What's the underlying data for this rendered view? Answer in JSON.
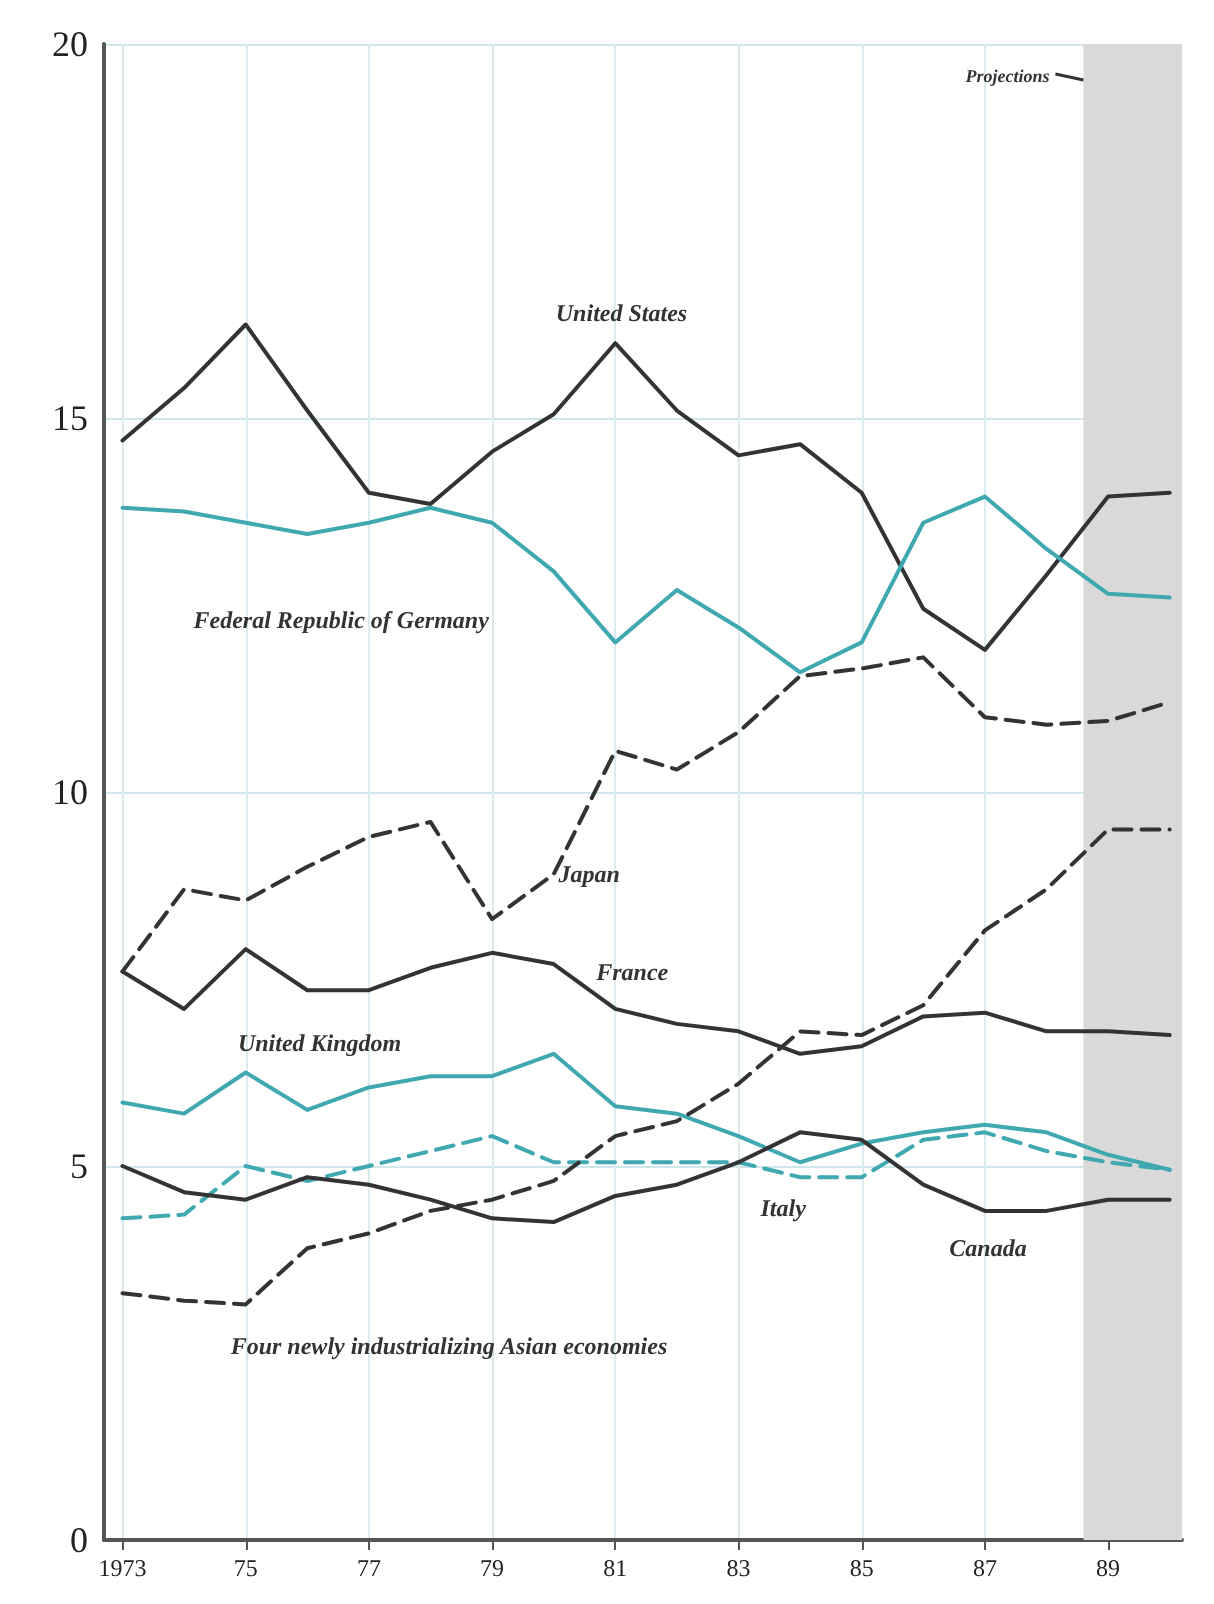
{
  "chart_data": {
    "type": "line",
    "x": [
      1973,
      1974,
      1975,
      1976,
      1977,
      1978,
      1979,
      1980,
      1981,
      1982,
      1983,
      1984,
      1985,
      1986,
      1987,
      1988,
      1989,
      1990
    ],
    "series": [
      {
        "name": "United States",
        "color": "#333333",
        "line_style": "solid",
        "values": [
          14.7,
          15.4,
          16.25,
          15.1,
          14.0,
          13.85,
          14.55,
          15.05,
          16.0,
          15.1,
          14.5,
          14.65,
          14.0,
          12.45,
          11.9,
          12.9,
          13.95,
          14.0
        ]
      },
      {
        "name": "Federal Republic of Germany",
        "color": "#3fa8b0",
        "line_style": "solid",
        "values": [
          13.8,
          13.75,
          13.6,
          13.45,
          13.6,
          13.8,
          13.6,
          12.95,
          12.0,
          12.7,
          12.2,
          11.6,
          12.0,
          13.6,
          13.95,
          13.25,
          12.65,
          12.6
        ]
      },
      {
        "name": "Japan",
        "color": "#333333",
        "line_style": "dashed",
        "values": [
          7.6,
          8.7,
          8.55,
          9.0,
          9.4,
          9.6,
          8.3,
          8.9,
          10.55,
          10.3,
          10.8,
          11.55,
          11.65,
          11.8,
          11.0,
          10.9,
          10.95,
          11.2
        ]
      },
      {
        "name": "France",
        "color": "#333333",
        "line_style": "solid",
        "values": [
          7.6,
          7.1,
          7.9,
          7.35,
          7.35,
          7.65,
          7.85,
          7.7,
          7.1,
          6.9,
          6.8,
          6.5,
          6.6,
          7.0,
          7.05,
          6.8,
          6.8,
          6.75
        ]
      },
      {
        "name": "United Kingdom",
        "color": "#3fa8b0",
        "line_style": "solid",
        "values": [
          5.85,
          5.7,
          6.25,
          5.75,
          6.05,
          6.2,
          6.2,
          6.5,
          5.8,
          5.7,
          5.4,
          5.05,
          5.3,
          5.45,
          5.55,
          5.45,
          5.15,
          4.95
        ]
      },
      {
        "name": "Italy",
        "color": "#3fa8b0",
        "line_style": "dashed",
        "values": [
          4.3,
          4.35,
          5.0,
          4.8,
          5.0,
          5.2,
          5.4,
          5.05,
          5.05,
          5.05,
          5.05,
          4.85,
          4.85,
          5.35,
          5.45,
          5.2,
          5.05,
          4.95
        ]
      },
      {
        "name": "Canada",
        "color": "#333333",
        "line_style": "solid",
        "values": [
          5.0,
          4.65,
          4.55,
          4.85,
          4.75,
          4.55,
          4.3,
          4.25,
          4.6,
          4.75,
          5.05,
          5.45,
          5.35,
          4.75,
          4.4,
          4.4,
          4.55,
          4.55
        ]
      },
      {
        "name": "Four newly industrializing Asian economies",
        "color": "#333333",
        "line_style": "dashed",
        "values": [
          3.3,
          3.2,
          3.15,
          3.9,
          4.1,
          4.4,
          4.55,
          4.8,
          5.4,
          5.6,
          6.1,
          6.8,
          6.75,
          7.15,
          8.15,
          8.7,
          9.5,
          9.5
        ]
      }
    ],
    "bands": [
      {
        "axis": "x",
        "from": 1988.6,
        "to": 1990.2,
        "label": "Projections",
        "color": "#d9d9d9"
      }
    ],
    "xlim": [
      1972.7,
      1990.2
    ],
    "xticks": [
      {
        "value": 1973,
        "label": "1973"
      },
      {
        "value": 1975,
        "label": "75"
      },
      {
        "value": 1977,
        "label": "77"
      },
      {
        "value": 1979,
        "label": "79"
      },
      {
        "value": 1981,
        "label": "81"
      },
      {
        "value": 1983,
        "label": "83"
      },
      {
        "value": 1985,
        "label": "85"
      },
      {
        "value": 1987,
        "label": "87"
      },
      {
        "value": 1989,
        "label": "89"
      }
    ],
    "ylim": [
      0,
      20
    ],
    "yticks": [
      0,
      5,
      10,
      15,
      20
    ],
    "grid": true,
    "marker": "none"
  }
}
